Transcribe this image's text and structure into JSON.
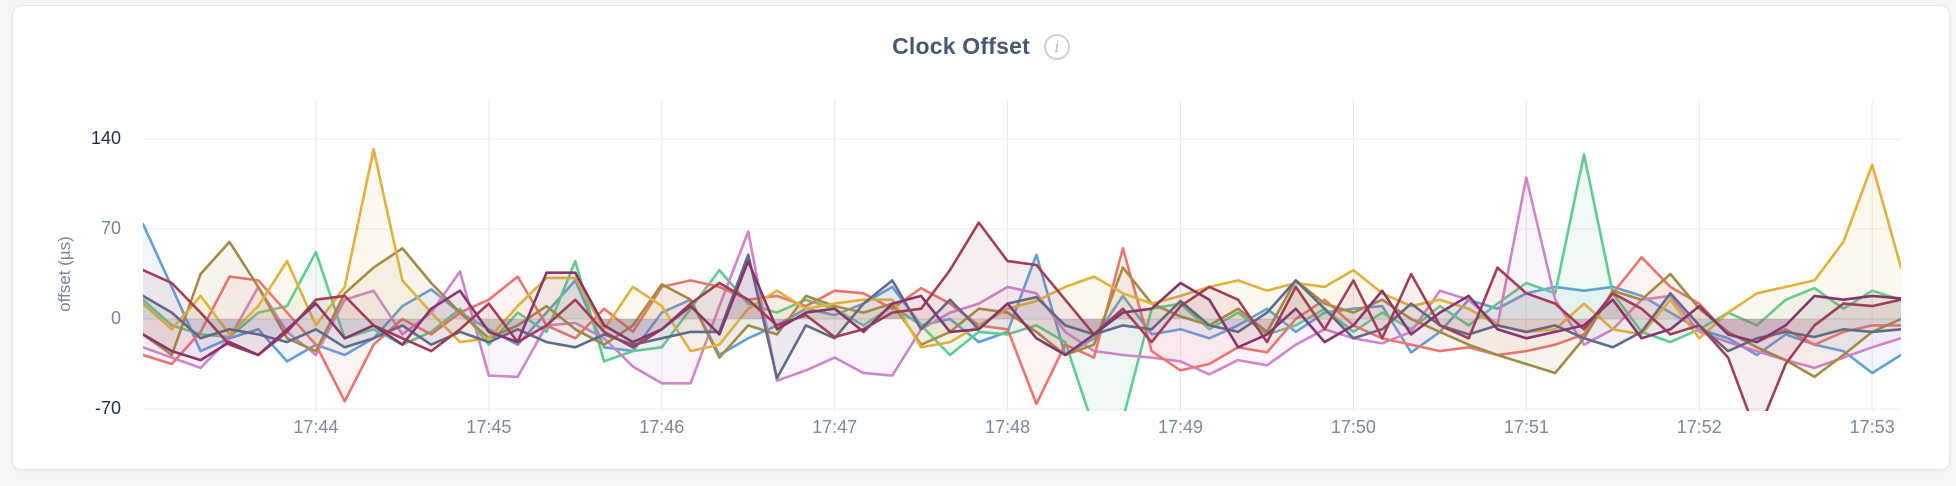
{
  "header": {
    "title": "Clock Offset",
    "info_icon": "i"
  },
  "chart_data": {
    "type": "line",
    "title": "Clock Offset",
    "xlabel": "",
    "ylabel": "offset (µs)",
    "legend": false,
    "grid": true,
    "ylim": [
      -71.6,
      169.6
    ],
    "x_step_seconds": 10,
    "x_count": 62,
    "y_tick_labels": [
      {
        "label": "140",
        "value": 140,
        "strong": true
      },
      {
        "label": "70",
        "value": 70,
        "strong": false
      },
      {
        "label": "0",
        "value": 0,
        "strong": false
      },
      {
        "label": "-70",
        "value": -70,
        "strong": true
      }
    ],
    "x_tick_labels": [
      {
        "label": "17:44",
        "i": 6
      },
      {
        "label": "17:45",
        "i": 12
      },
      {
        "label": "17:46",
        "i": 18
      },
      {
        "label": "17:47",
        "i": 24
      },
      {
        "label": "17:48",
        "i": 30
      },
      {
        "label": "17:49",
        "i": 36
      },
      {
        "label": "17:50",
        "i": 42
      },
      {
        "label": "17:51",
        "i": 48
      },
      {
        "label": "17:52",
        "i": 54
      },
      {
        "label": "17:53",
        "i": 60
      }
    ],
    "colors": {
      "grid": "#ececec",
      "grid_zero": "#dcdcdc",
      "grid_v": "#e8e8e8",
      "title": "#475872",
      "tick_strong": "#25304d",
      "tick_muted": "#78829a",
      "fill_opacity": 0.09
    },
    "series": [
      {
        "id": "s1",
        "color": "#61A0D9",
        "values": [
          74,
          25,
          -25,
          -15,
          -8,
          -33,
          -20,
          -28,
          -15,
          10,
          23,
          5,
          -8,
          -20,
          5,
          30,
          -22,
          -25,
          5,
          15,
          -28,
          -15,
          -5,
          8,
          3,
          12,
          25,
          -5,
          0,
          -18,
          -10,
          50,
          -28,
          -15,
          18,
          -12,
          -8,
          -15,
          -5,
          8,
          -10,
          5,
          8,
          10,
          -26,
          -10,
          15,
          8,
          20,
          25,
          22,
          25,
          18,
          5,
          -8,
          -15,
          -28,
          -12,
          -20,
          -25,
          -42,
          -28
        ]
      },
      {
        "id": "s2",
        "color": "#5ECD90",
        "values": [
          15,
          -5,
          -12,
          -14,
          5,
          10,
          52,
          -15,
          -8,
          -20,
          -10,
          8,
          -20,
          5,
          -10,
          45,
          -33,
          -25,
          -22,
          8,
          38,
          12,
          5,
          15,
          8,
          -5,
          10,
          -5,
          -28,
          -10,
          -12,
          -5,
          -18,
          -85,
          -78,
          8,
          12,
          -8,
          5,
          -12,
          -5,
          8,
          -10,
          5,
          -8,
          10,
          -5,
          12,
          28,
          20,
          128,
          20,
          -10,
          -18,
          -8,
          5,
          -5,
          15,
          24,
          8,
          22,
          15
        ]
      },
      {
        "id": "s3",
        "color": "#CF85CB",
        "values": [
          -22,
          -30,
          -38,
          -15,
          25,
          -10,
          -28,
          15,
          22,
          -12,
          5,
          37,
          -44,
          -45,
          -5,
          -3,
          -15,
          -37,
          -50,
          -50,
          10,
          68,
          -48,
          -40,
          -30,
          -42,
          -44,
          -8,
          5,
          12,
          25,
          20,
          -10,
          -25,
          -28,
          -30,
          -33,
          -43,
          -32,
          -36,
          -20,
          -8,
          -15,
          -19,
          -10,
          22,
          15,
          -5,
          110,
          15,
          -20,
          -8,
          15,
          18,
          -10,
          -18,
          -25,
          -32,
          -38,
          -30,
          -22,
          -15
        ]
      },
      {
        "id": "s4",
        "color": "#E9756E",
        "values": [
          -28,
          -35,
          -10,
          33,
          30,
          5,
          -20,
          -64,
          -20,
          0,
          -12,
          5,
          15,
          33,
          -5,
          -15,
          8,
          -10,
          25,
          30,
          25,
          15,
          18,
          10,
          22,
          20,
          8,
          24,
          12,
          -5,
          -8,
          -66,
          -20,
          -30,
          55,
          -25,
          -40,
          -35,
          -22,
          -26,
          0,
          15,
          -5,
          -15,
          -20,
          -25,
          -22,
          -28,
          -25,
          -20,
          -12,
          20,
          48,
          25,
          12,
          -12,
          -18,
          -8,
          -20,
          -10,
          -5,
          -5
        ]
      },
      {
        "id": "s5",
        "color": "#A58A45",
        "values": [
          -12,
          -28,
          35,
          60,
          25,
          -15,
          -25,
          20,
          40,
          55,
          28,
          5,
          -15,
          -5,
          10,
          -8,
          -20,
          -5,
          27,
          15,
          -30,
          -5,
          -12,
          18,
          10,
          5,
          12,
          -20,
          -10,
          8,
          5,
          -10,
          -28,
          -20,
          40,
          12,
          2,
          -5,
          8,
          -10,
          30,
          12,
          5,
          15,
          0,
          -10,
          -20,
          -28,
          -35,
          -42,
          -15,
          22,
          15,
          35,
          8,
          -10,
          -22,
          -32,
          -45,
          -28,
          -10,
          0
        ]
      },
      {
        "id": "s6",
        "color": "#E0B13E",
        "values": [
          12,
          -8,
          18,
          -12,
          10,
          45,
          -5,
          25,
          132,
          30,
          5,
          -18,
          -15,
          10,
          32,
          32,
          -8,
          25,
          10,
          -25,
          -20,
          8,
          22,
          8,
          12,
          15,
          15,
          -22,
          -18,
          -5,
          8,
          14,
          25,
          33,
          20,
          12,
          18,
          25,
          30,
          22,
          28,
          25,
          38,
          20,
          10,
          15,
          8,
          -5,
          -10,
          -8,
          12,
          -8,
          -12,
          15,
          -15,
          5,
          20,
          25,
          30,
          60,
          120,
          40
        ]
      },
      {
        "id": "s7",
        "color": "#5F6C87",
        "values": [
          18,
          5,
          -15,
          -8,
          -12,
          -18,
          -8,
          -22,
          -15,
          -5,
          -20,
          -10,
          -18,
          -8,
          -18,
          -22,
          -12,
          -20,
          -15,
          -10,
          -10,
          50,
          -46,
          -5,
          -15,
          12,
          30,
          -8,
          15,
          -8,
          12,
          17,
          -5,
          -12,
          -5,
          -8,
          14,
          -5,
          -10,
          5,
          30,
          8,
          -15,
          -8,
          12,
          -5,
          -12,
          -5,
          -10,
          -5,
          -15,
          -22,
          -10,
          20,
          -5,
          -25,
          -15,
          -10,
          -14,
          -8,
          -10,
          -8
        ]
      },
      {
        "id": "s8",
        "color": "#A23E55",
        "values": [
          38,
          28,
          5,
          -20,
          -28,
          -10,
          15,
          18,
          -5,
          -15,
          -25,
          -8,
          12,
          -18,
          -5,
          15,
          -10,
          -22,
          -8,
          12,
          28,
          15,
          -5,
          3,
          -14,
          -8,
          5,
          8,
          38,
          75,
          45,
          42,
          15,
          -12,
          8,
          -18,
          10,
          25,
          15,
          -18,
          25,
          -8,
          30,
          -15,
          35,
          -5,
          -15,
          40,
          20,
          12,
          -8,
          20,
          8,
          -12,
          -5,
          -30,
          -90,
          -35,
          -5,
          12,
          10,
          15
        ]
      },
      {
        "id": "s9",
        "color": "#87356E",
        "values": [
          -12,
          -25,
          -32,
          -18,
          -28,
          -8,
          12,
          -15,
          -5,
          -20,
          8,
          22,
          -10,
          -18,
          36,
          36,
          -5,
          -18,
          -8,
          10,
          -12,
          45,
          -8,
          5,
          8,
          -10,
          12,
          18,
          -10,
          -8,
          12,
          -15,
          -28,
          -12,
          5,
          8,
          28,
          15,
          -22,
          -12,
          8,
          -18,
          -5,
          22,
          -12,
          5,
          18,
          -8,
          -15,
          -10,
          -5,
          15,
          -15,
          -8,
          10,
          -12,
          -18,
          -5,
          18,
          15,
          18,
          16
        ]
      }
    ]
  }
}
